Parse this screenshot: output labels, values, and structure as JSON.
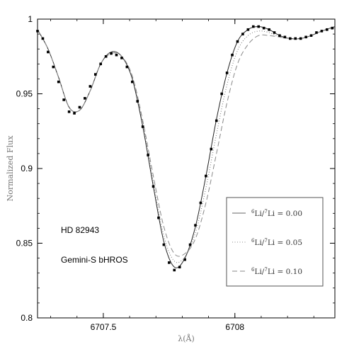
{
  "chart_data": {
    "type": "line",
    "title": "",
    "xlabel": "λ(Å)",
    "ylabel": "Normalized Flux",
    "xlim": [
      6707.25,
      6708.38
    ],
    "ylim": [
      0.8,
      1.0
    ],
    "x_ticks": [
      6707.5,
      6708
    ],
    "x_tick_labels": [
      "6707.5",
      "6708"
    ],
    "y_ticks": [
      0.8,
      0.85,
      0.9,
      0.95,
      1.0
    ],
    "y_tick_labels": [
      "0.8",
      "0.85",
      "0.9",
      "0.95",
      "1"
    ],
    "grid": false,
    "legend_position": "lower-right",
    "annotations": [
      "HD 82943",
      "Gemini-S bHROS"
    ],
    "legend": [
      {
        "ratio_label": "Li/",
        "sup1": "6",
        "sup2": "7",
        "tail": "Li = 0.00",
        "style": "solid"
      },
      {
        "ratio_label": "Li/",
        "sup1": "6",
        "sup2": "7",
        "tail": "Li = 0.05",
        "style": "dotted"
      },
      {
        "ratio_label": "Li/",
        "sup1": "6",
        "sup2": "7",
        "tail": "Li = 0.10",
        "style": "dashed"
      }
    ],
    "series": [
      {
        "style": "solid",
        "x": [
          6707.25,
          6707.29,
          6707.33,
          6707.37,
          6707.41,
          6707.45,
          6707.49,
          6707.53,
          6707.57,
          6707.61,
          6707.65,
          6707.69,
          6707.73,
          6707.77,
          6707.81,
          6707.85,
          6707.89,
          6707.93,
          6707.97,
          6708.01,
          6708.05,
          6708.09,
          6708.13,
          6708.17,
          6708.21,
          6708.25,
          6708.29,
          6708.33,
          6708.38
        ],
        "y": [
          0.993,
          0.98,
          0.961,
          0.941,
          0.939,
          0.952,
          0.97,
          0.978,
          0.975,
          0.96,
          0.928,
          0.888,
          0.851,
          0.834,
          0.84,
          0.861,
          0.895,
          0.933,
          0.964,
          0.985,
          0.993,
          0.995,
          0.993,
          0.989,
          0.987,
          0.987,
          0.989,
          0.992,
          0.995
        ]
      },
      {
        "style": "dotted",
        "x": [
          6707.25,
          6707.29,
          6707.33,
          6707.37,
          6707.41,
          6707.45,
          6707.49,
          6707.53,
          6707.57,
          6707.61,
          6707.65,
          6707.69,
          6707.73,
          6707.77,
          6707.81,
          6707.85,
          6707.89,
          6707.93,
          6707.97,
          6708.01,
          6708.05,
          6708.09,
          6708.13,
          6708.17,
          6708.21,
          6708.25,
          6708.29,
          6708.33,
          6708.38
        ],
        "y": [
          0.993,
          0.98,
          0.961,
          0.941,
          0.939,
          0.952,
          0.97,
          0.978,
          0.975,
          0.961,
          0.93,
          0.891,
          0.855,
          0.838,
          0.841,
          0.857,
          0.887,
          0.923,
          0.956,
          0.979,
          0.989,
          0.992,
          0.991,
          0.988,
          0.987,
          0.987,
          0.989,
          0.992,
          0.995
        ]
      },
      {
        "style": "dashed",
        "x": [
          6707.25,
          6707.29,
          6707.33,
          6707.37,
          6707.41,
          6707.45,
          6707.49,
          6707.53,
          6707.57,
          6707.61,
          6707.65,
          6707.69,
          6707.73,
          6707.77,
          6707.81,
          6707.85,
          6707.89,
          6707.93,
          6707.97,
          6708.01,
          6708.05,
          6708.09,
          6708.13,
          6708.17,
          6708.21,
          6708.25,
          6708.29,
          6708.33,
          6708.38
        ],
        "y": [
          0.993,
          0.98,
          0.961,
          0.941,
          0.939,
          0.952,
          0.97,
          0.977,
          0.975,
          0.962,
          0.932,
          0.895,
          0.861,
          0.843,
          0.843,
          0.853,
          0.877,
          0.91,
          0.944,
          0.97,
          0.983,
          0.989,
          0.989,
          0.988,
          0.987,
          0.987,
          0.989,
          0.992,
          0.994
        ]
      }
    ],
    "observed_points": {
      "x": [
        6707.25,
        6707.27,
        6707.29,
        6707.31,
        6707.33,
        6707.35,
        6707.37,
        6707.39,
        6707.41,
        6707.43,
        6707.45,
        6707.47,
        6707.49,
        6707.51,
        6707.53,
        6707.55,
        6707.57,
        6707.59,
        6707.61,
        6707.63,
        6707.65,
        6707.67,
        6707.69,
        6707.71,
        6707.73,
        6707.75,
        6707.77,
        6707.79,
        6707.81,
        6707.83,
        6707.85,
        6707.87,
        6707.89,
        6707.91,
        6707.93,
        6707.95,
        6707.97,
        6707.99,
        6708.01,
        6708.03,
        6708.05,
        6708.07,
        6708.09,
        6708.11,
        6708.13,
        6708.15,
        6708.17,
        6708.19,
        6708.21,
        6708.23,
        6708.25,
        6708.27,
        6708.29,
        6708.31,
        6708.33,
        6708.35,
        6708.37
      ],
      "y": [
        0.992,
        0.987,
        0.978,
        0.968,
        0.958,
        0.946,
        0.938,
        0.937,
        0.941,
        0.947,
        0.955,
        0.963,
        0.97,
        0.975,
        0.977,
        0.976,
        0.974,
        0.968,
        0.958,
        0.945,
        0.928,
        0.909,
        0.888,
        0.867,
        0.849,
        0.837,
        0.832,
        0.834,
        0.839,
        0.849,
        0.862,
        0.877,
        0.895,
        0.913,
        0.932,
        0.95,
        0.964,
        0.976,
        0.985,
        0.99,
        0.993,
        0.995,
        0.995,
        0.994,
        0.993,
        0.991,
        0.989,
        0.988,
        0.987,
        0.987,
        0.987,
        0.988,
        0.989,
        0.991,
        0.992,
        0.993,
        0.994
      ]
    }
  }
}
